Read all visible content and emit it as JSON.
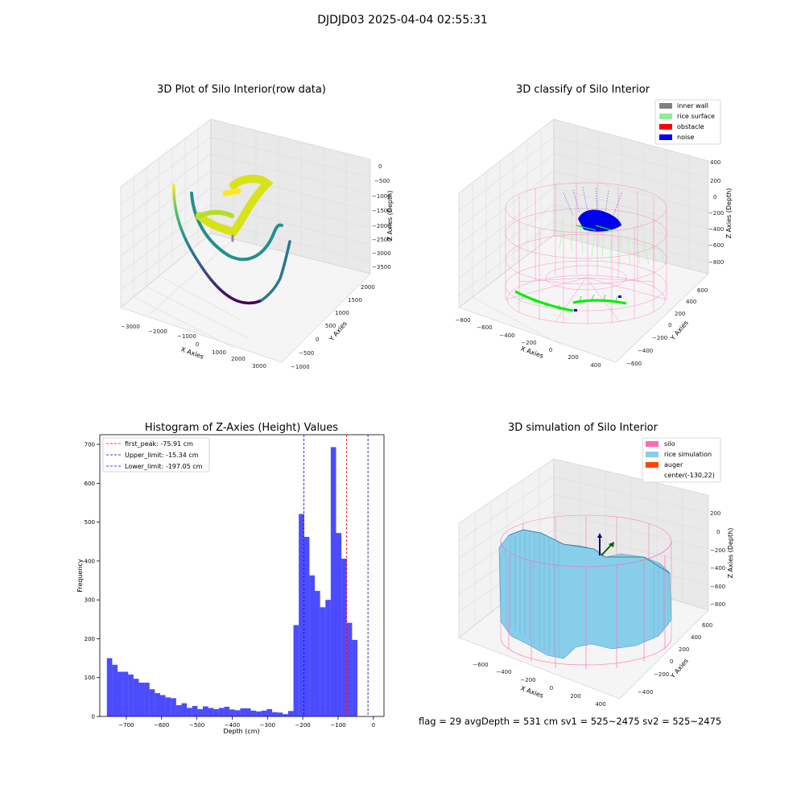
{
  "figure": {
    "suptitle": "DJDJD03 2025-04-04 02:55:31"
  },
  "footer": {
    "text": "flag = 29  avgDepth = 531 cm  sv1 = 525~2475  sv2 = 525~2475"
  },
  "colors": {
    "wall": "#808080",
    "surface": "#90ee90",
    "obstacle": "#ff0000",
    "noise": "#0000ff",
    "silo": "#ff69b4",
    "rice": "#87ceeb",
    "auger": "#ff4500",
    "hist": "#0000ff"
  },
  "chart_data": [
    {
      "type": "scatter",
      "projection": "3d",
      "title": "3D Plot of Silo Interior(row data)",
      "xlabel": "X Axies",
      "ylabel": "Y Axies",
      "zlabel": "Z Axies (Depth)",
      "xticks": [
        "−3000",
        "−2000",
        "−1000",
        "0",
        "1000",
        "2000",
        "3000"
      ],
      "yticks": [
        "−1000",
        "−500",
        "0",
        "500",
        "1000",
        "1500",
        "2000"
      ],
      "zticks": [
        "0",
        "−500",
        "−1000",
        "−1500",
        "−2000",
        "−2500",
        "−3000",
        "−3500"
      ],
      "colormap": "viridis",
      "grid": true
    },
    {
      "type": "scatter",
      "projection": "3d",
      "title": "3D classify of Silo Interior",
      "xlabel": "X Axies",
      "ylabel": "Y Axies",
      "zlabel": "Z Axies (Depth)",
      "xticks": [
        "−800",
        "−600",
        "−400",
        "−200",
        "0",
        "200",
        "400"
      ],
      "yticks": [
        "−600",
        "−400",
        "−200",
        "0",
        "200",
        "400",
        "600"
      ],
      "zticks": [
        "400",
        "200",
        "0",
        "−200",
        "−400",
        "−600",
        "−800"
      ],
      "legend": {
        "position": "upper right",
        "entries": [
          {
            "label": "inner wall",
            "color": "#808080"
          },
          {
            "label": "rice surface",
            "color": "#90ee90"
          },
          {
            "label": "obstacle",
            "color": "#ff0000"
          },
          {
            "label": "noise",
            "color": "#0000ff"
          }
        ]
      },
      "grid": true
    },
    {
      "type": "bar",
      "subtype": "histogram",
      "title": "Histogram of Z-Axies (Height) Values",
      "xlabel": "Depth (cm)",
      "ylabel": "Frequency",
      "xlim": [
        -775,
        30
      ],
      "ylim": [
        0,
        725
      ],
      "xticks": [
        -700,
        -600,
        -500,
        -400,
        -300,
        -200,
        -100,
        0
      ],
      "yticks": [
        0,
        100,
        200,
        300,
        400,
        500,
        600,
        700
      ],
      "bin_start": -755,
      "bin_width": 15.1,
      "values": [
        150,
        133,
        115,
        115,
        108,
        97,
        87,
        87,
        70,
        60,
        55,
        49,
        47,
        29,
        34,
        22,
        27,
        19,
        26,
        22,
        19,
        22,
        25,
        18,
        16,
        21,
        21,
        15,
        13,
        15,
        19,
        11,
        10,
        6,
        14,
        235,
        521,
        462,
        363,
        323,
        281,
        300,
        693,
        472,
        406,
        241,
        197
      ],
      "vlines": [
        {
          "label": "first_peak: -75.91 cm",
          "x": -75.91,
          "color": "#ff0000"
        },
        {
          "label": "Upper_limit: -15.34 cm",
          "x": -15.34,
          "color": "#000080"
        },
        {
          "label": "Lower_limit: -197.05 cm",
          "x": -197.05,
          "color": "#0000ff"
        }
      ],
      "legend_position": "upper left",
      "grid": false
    },
    {
      "type": "surface",
      "projection": "3d",
      "title": "3D simulation of Silo Interior",
      "xlabel": "X Axies",
      "ylabel": "Y Axies",
      "zlabel": "Z Axies (Depth)",
      "xticks": [
        "−600",
        "−400",
        "−200",
        "0",
        "200",
        "400"
      ],
      "yticks": [
        "−400",
        "−200",
        "0",
        "200",
        "400",
        "600"
      ],
      "zticks": [
        "200",
        "0",
        "−200",
        "−400",
        "−600",
        "−800"
      ],
      "legend": {
        "position": "upper right",
        "entries": [
          {
            "label": "silo",
            "color": "#ff69b4"
          },
          {
            "label": "rice simulation",
            "color": "#87ceeb"
          },
          {
            "label": "auger",
            "color": "#ff4500"
          },
          {
            "label": "center(-130,22)",
            "color": ""
          }
        ]
      },
      "grid": true
    }
  ]
}
